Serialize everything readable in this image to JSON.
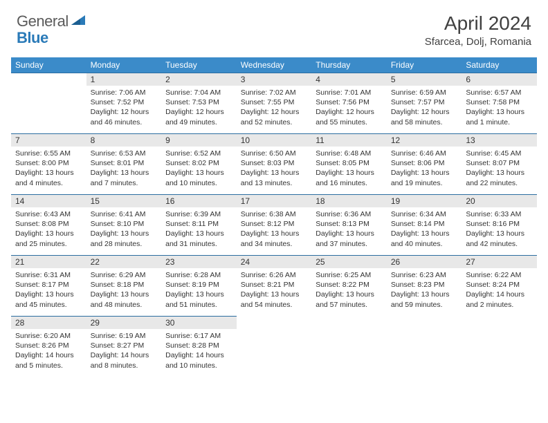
{
  "logo": {
    "general": "General",
    "blue": "Blue"
  },
  "title": "April 2024",
  "location": "Sfarcea, Dolj, Romania",
  "colors": {
    "header_bg": "#3b8bc9",
    "header_text": "#ffffff",
    "day_num_bg": "#e8e8e8",
    "cell_border": "#2a6ca0",
    "logo_gray": "#5a5a5a",
    "logo_blue": "#2a7ab8",
    "body_text": "#333333"
  },
  "weekdays": [
    "Sunday",
    "Monday",
    "Tuesday",
    "Wednesday",
    "Thursday",
    "Friday",
    "Saturday"
  ],
  "leading_blanks": 1,
  "days": [
    {
      "n": 1,
      "sr": "7:06 AM",
      "ss": "7:52 PM",
      "dl": "12 hours and 46 minutes"
    },
    {
      "n": 2,
      "sr": "7:04 AM",
      "ss": "7:53 PM",
      "dl": "12 hours and 49 minutes"
    },
    {
      "n": 3,
      "sr": "7:02 AM",
      "ss": "7:55 PM",
      "dl": "12 hours and 52 minutes"
    },
    {
      "n": 4,
      "sr": "7:01 AM",
      "ss": "7:56 PM",
      "dl": "12 hours and 55 minutes"
    },
    {
      "n": 5,
      "sr": "6:59 AM",
      "ss": "7:57 PM",
      "dl": "12 hours and 58 minutes"
    },
    {
      "n": 6,
      "sr": "6:57 AM",
      "ss": "7:58 PM",
      "dl": "13 hours and 1 minute"
    },
    {
      "n": 7,
      "sr": "6:55 AM",
      "ss": "8:00 PM",
      "dl": "13 hours and 4 minutes"
    },
    {
      "n": 8,
      "sr": "6:53 AM",
      "ss": "8:01 PM",
      "dl": "13 hours and 7 minutes"
    },
    {
      "n": 9,
      "sr": "6:52 AM",
      "ss": "8:02 PM",
      "dl": "13 hours and 10 minutes"
    },
    {
      "n": 10,
      "sr": "6:50 AM",
      "ss": "8:03 PM",
      "dl": "13 hours and 13 minutes"
    },
    {
      "n": 11,
      "sr": "6:48 AM",
      "ss": "8:05 PM",
      "dl": "13 hours and 16 minutes"
    },
    {
      "n": 12,
      "sr": "6:46 AM",
      "ss": "8:06 PM",
      "dl": "13 hours and 19 minutes"
    },
    {
      "n": 13,
      "sr": "6:45 AM",
      "ss": "8:07 PM",
      "dl": "13 hours and 22 minutes"
    },
    {
      "n": 14,
      "sr": "6:43 AM",
      "ss": "8:08 PM",
      "dl": "13 hours and 25 minutes"
    },
    {
      "n": 15,
      "sr": "6:41 AM",
      "ss": "8:10 PM",
      "dl": "13 hours and 28 minutes"
    },
    {
      "n": 16,
      "sr": "6:39 AM",
      "ss": "8:11 PM",
      "dl": "13 hours and 31 minutes"
    },
    {
      "n": 17,
      "sr": "6:38 AM",
      "ss": "8:12 PM",
      "dl": "13 hours and 34 minutes"
    },
    {
      "n": 18,
      "sr": "6:36 AM",
      "ss": "8:13 PM",
      "dl": "13 hours and 37 minutes"
    },
    {
      "n": 19,
      "sr": "6:34 AM",
      "ss": "8:14 PM",
      "dl": "13 hours and 40 minutes"
    },
    {
      "n": 20,
      "sr": "6:33 AM",
      "ss": "8:16 PM",
      "dl": "13 hours and 42 minutes"
    },
    {
      "n": 21,
      "sr": "6:31 AM",
      "ss": "8:17 PM",
      "dl": "13 hours and 45 minutes"
    },
    {
      "n": 22,
      "sr": "6:29 AM",
      "ss": "8:18 PM",
      "dl": "13 hours and 48 minutes"
    },
    {
      "n": 23,
      "sr": "6:28 AM",
      "ss": "8:19 PM",
      "dl": "13 hours and 51 minutes"
    },
    {
      "n": 24,
      "sr": "6:26 AM",
      "ss": "8:21 PM",
      "dl": "13 hours and 54 minutes"
    },
    {
      "n": 25,
      "sr": "6:25 AM",
      "ss": "8:22 PM",
      "dl": "13 hours and 57 minutes"
    },
    {
      "n": 26,
      "sr": "6:23 AM",
      "ss": "8:23 PM",
      "dl": "13 hours and 59 minutes"
    },
    {
      "n": 27,
      "sr": "6:22 AM",
      "ss": "8:24 PM",
      "dl": "14 hours and 2 minutes"
    },
    {
      "n": 28,
      "sr": "6:20 AM",
      "ss": "8:26 PM",
      "dl": "14 hours and 5 minutes"
    },
    {
      "n": 29,
      "sr": "6:19 AM",
      "ss": "8:27 PM",
      "dl": "14 hours and 8 minutes"
    },
    {
      "n": 30,
      "sr": "6:17 AM",
      "ss": "8:28 PM",
      "dl": "14 hours and 10 minutes"
    }
  ]
}
